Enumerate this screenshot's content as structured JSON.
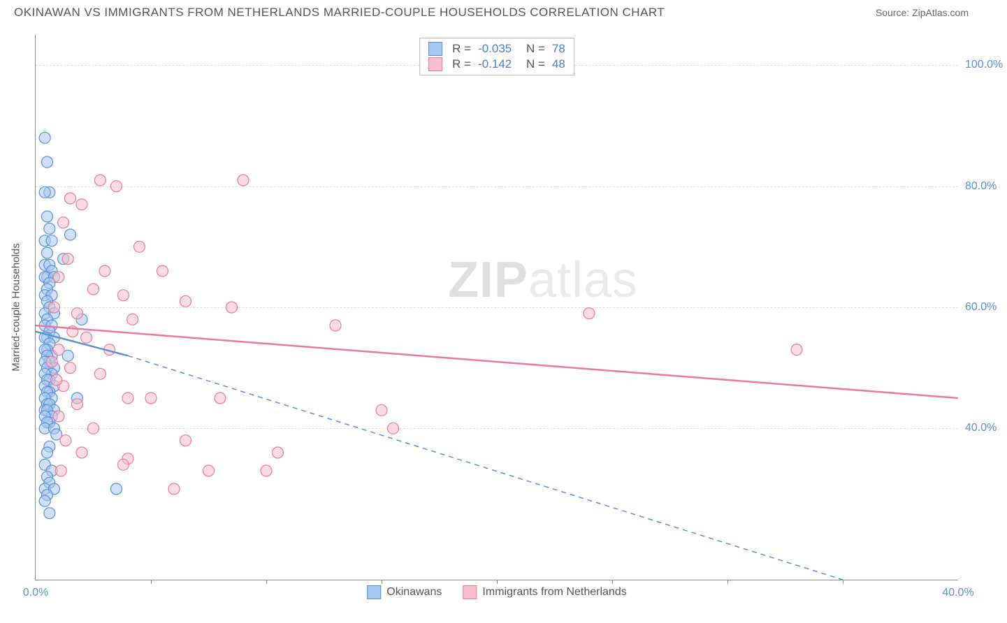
{
  "title": "OKINAWAN VS IMMIGRANTS FROM NETHERLANDS MARRIED-COUPLE HOUSEHOLDS CORRELATION CHART",
  "source": "Source: ZipAtlas.com",
  "watermark_zip": "ZIP",
  "watermark_atlas": "atlas",
  "y_axis_label": "Married-couple Households",
  "chart": {
    "type": "scatter",
    "xlim": [
      0,
      40
    ],
    "ylim": [
      15,
      105
    ],
    "grid_color": "#dddddd",
    "background_color": "#ffffff",
    "axis_color": "#888888",
    "y_ticks": [
      40,
      60,
      80,
      100
    ],
    "y_tick_labels": [
      "40.0%",
      "60.0%",
      "80.0%",
      "100.0%"
    ],
    "x_ticks": [
      0,
      40
    ],
    "x_tick_labels": [
      "0.0%",
      "40.0%"
    ],
    "x_minor_ticks": [
      5,
      10,
      15,
      20,
      25,
      30,
      35
    ],
    "y_tick_color": "#5b8fd6",
    "x_tick_color": "#5b8fd6",
    "marker_radius": 8,
    "marker_opacity": 0.55
  },
  "series": [
    {
      "name": "Okinawans",
      "color_fill": "#a7c7f0",
      "color_stroke": "#5b8fd6",
      "R": "-0.035",
      "N": "78",
      "trend": {
        "x1": 0,
        "y1": 56,
        "x2": 4,
        "y2": 52,
        "dash_x2": 35,
        "dash_y2": 15,
        "stroke_width": 2.5
      },
      "points": [
        [
          0.4,
          88
        ],
        [
          0.5,
          84
        ],
        [
          0.6,
          79
        ],
        [
          0.4,
          79
        ],
        [
          0.5,
          75
        ],
        [
          0.6,
          73
        ],
        [
          0.4,
          71
        ],
        [
          0.7,
          71
        ],
        [
          0.5,
          69
        ],
        [
          0.4,
          67
        ],
        [
          0.6,
          67
        ],
        [
          0.7,
          66
        ],
        [
          0.5,
          65
        ],
        [
          0.4,
          65
        ],
        [
          0.8,
          65
        ],
        [
          0.6,
          64
        ],
        [
          0.5,
          63
        ],
        [
          0.4,
          62
        ],
        [
          0.7,
          62
        ],
        [
          0.5,
          61
        ],
        [
          0.6,
          60
        ],
        [
          0.4,
          59
        ],
        [
          0.8,
          59
        ],
        [
          0.5,
          58
        ],
        [
          0.4,
          57
        ],
        [
          0.7,
          57
        ],
        [
          0.6,
          56
        ],
        [
          0.5,
          55
        ],
        [
          0.4,
          55
        ],
        [
          0.8,
          55
        ],
        [
          0.6,
          54
        ],
        [
          0.5,
          53
        ],
        [
          0.4,
          53
        ],
        [
          0.7,
          52
        ],
        [
          0.5,
          52
        ],
        [
          0.6,
          51
        ],
        [
          0.4,
          51
        ],
        [
          0.8,
          50
        ],
        [
          0.5,
          50
        ],
        [
          0.7,
          49
        ],
        [
          0.4,
          49
        ],
        [
          0.6,
          48
        ],
        [
          0.5,
          48
        ],
        [
          0.4,
          47
        ],
        [
          0.8,
          47
        ],
        [
          0.6,
          46
        ],
        [
          0.5,
          46
        ],
        [
          0.7,
          45
        ],
        [
          0.4,
          45
        ],
        [
          0.5,
          44
        ],
        [
          0.6,
          44
        ],
        [
          0.4,
          43
        ],
        [
          0.8,
          43
        ],
        [
          0.5,
          43
        ],
        [
          0.7,
          42
        ],
        [
          0.4,
          42
        ],
        [
          0.6,
          41
        ],
        [
          0.5,
          41
        ],
        [
          0.4,
          40
        ],
        [
          0.8,
          40
        ],
        [
          0.9,
          39
        ],
        [
          0.6,
          37
        ],
        [
          0.5,
          36
        ],
        [
          0.4,
          34
        ],
        [
          0.7,
          33
        ],
        [
          0.5,
          32
        ],
        [
          0.6,
          31
        ],
        [
          0.4,
          30
        ],
        [
          0.8,
          30
        ],
        [
          0.5,
          29
        ],
        [
          0.4,
          28
        ],
        [
          0.6,
          26
        ],
        [
          3.5,
          30
        ],
        [
          1.5,
          72
        ],
        [
          1.2,
          68
        ],
        [
          1.8,
          45
        ],
        [
          1.4,
          52
        ],
        [
          2.0,
          58
        ]
      ]
    },
    {
      "name": "Immigrants from Netherlands",
      "color_fill": "#f5c0cb",
      "color_stroke": "#e87a9a",
      "R": "-0.142",
      "N": "48",
      "trend": {
        "x1": 0,
        "y1": 57,
        "x2": 40,
        "y2": 45,
        "stroke_width": 2.5
      },
      "points": [
        [
          2.8,
          81
        ],
        [
          3.5,
          80
        ],
        [
          1.5,
          78
        ],
        [
          2.0,
          77
        ],
        [
          1.2,
          74
        ],
        [
          9.0,
          81
        ],
        [
          4.5,
          70
        ],
        [
          3.0,
          66
        ],
        [
          5.5,
          66
        ],
        [
          2.5,
          63
        ],
        [
          3.8,
          62
        ],
        [
          6.5,
          61
        ],
        [
          1.8,
          59
        ],
        [
          4.2,
          58
        ],
        [
          8.5,
          60
        ],
        [
          2.2,
          55
        ],
        [
          1.0,
          53
        ],
        [
          3.2,
          53
        ],
        [
          1.5,
          50
        ],
        [
          2.8,
          49
        ],
        [
          1.2,
          47
        ],
        [
          4.0,
          45
        ],
        [
          5.0,
          45
        ],
        [
          8.0,
          45
        ],
        [
          1.8,
          44
        ],
        [
          1.0,
          42
        ],
        [
          2.5,
          40
        ],
        [
          6.5,
          38
        ],
        [
          4.0,
          35
        ],
        [
          7.5,
          33
        ],
        [
          6.0,
          30
        ],
        [
          3.8,
          34
        ],
        [
          10.0,
          33
        ],
        [
          10.5,
          36
        ],
        [
          13.0,
          57
        ],
        [
          15.0,
          43
        ],
        [
          15.5,
          40
        ],
        [
          24.0,
          59
        ],
        [
          33.0,
          53
        ],
        [
          1.4,
          68
        ],
        [
          1.0,
          65
        ],
        [
          0.8,
          60
        ],
        [
          1.6,
          56
        ],
        [
          0.9,
          48
        ],
        [
          1.3,
          38
        ],
        [
          2.0,
          36
        ],
        [
          1.1,
          33
        ],
        [
          0.7,
          51
        ]
      ]
    }
  ],
  "stats_labels": {
    "R": "R =",
    "N": "N ="
  },
  "legend_label_1": "Okinawans",
  "legend_label_2": "Immigrants from Netherlands"
}
